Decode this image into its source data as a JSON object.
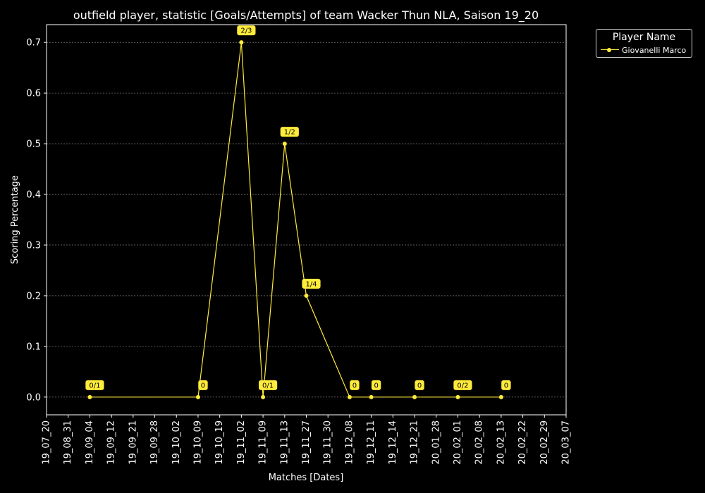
{
  "chart_data": {
    "type": "line",
    "title": "outfield player, statistic [Goals/Attempts] of team Wacker Thun NLA, Saison 19_20",
    "xlabel": "Matches [Dates]",
    "ylabel": "Scoring Percentage",
    "x_ticks": [
      "19_07_20",
      "19_08_31",
      "19_09_04",
      "19_09_12",
      "19_09_21",
      "19_09_28",
      "19_10_02",
      "19_10_09",
      "19_10_19",
      "19_11_02",
      "19_11_09",
      "19_11_13",
      "19_11_27",
      "19_11_30",
      "19_12_08",
      "19_12_11",
      "19_12_14",
      "19_12_21",
      "20_01_28",
      "20_02_01",
      "20_02_08",
      "20_02_13",
      "20_02_22",
      "20_02_29",
      "20_03_07"
    ],
    "y_ticks": [
      "0.0",
      "0.1",
      "0.2",
      "0.3",
      "0.4",
      "0.5",
      "0.6",
      "0.7"
    ],
    "ylim": [
      -0.035,
      0.735
    ],
    "grid": true,
    "series": [
      {
        "name": "Giovanelli Marco",
        "color": "#ffeb3b",
        "x": [
          "19_09_04",
          "19_10_09",
          "19_11_02",
          "19_11_09",
          "19_11_13",
          "19_11_27",
          "19_12_08",
          "19_12_11",
          "19_12_21",
          "20_02_01",
          "20_02_13"
        ],
        "values": [
          0.0,
          0.0,
          0.7,
          0.0,
          0.5,
          0.2,
          0.0,
          0.0,
          0.0,
          0.0,
          0.0
        ],
        "labels": [
          "0/1",
          "0",
          "2/3",
          "0/1",
          "1/2",
          "1/4",
          "0",
          "0",
          "0",
          "0/2",
          "0"
        ]
      }
    ],
    "legend": {
      "title": "Player Name",
      "position": "outside-top-right"
    }
  }
}
